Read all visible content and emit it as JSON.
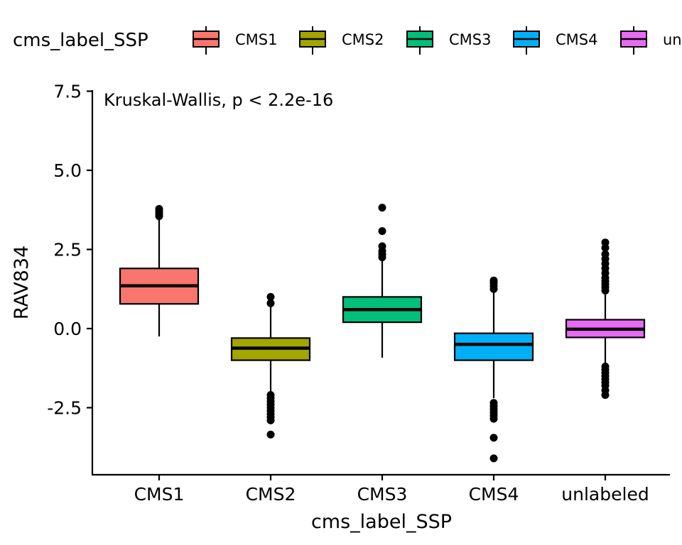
{
  "chart_data": {
    "type": "boxplot",
    "annotation": "Kruskal-Wallis, p < 2.2e-16",
    "xlabel": "cms_label_SSP",
    "ylabel": "RAV834",
    "ylim": [
      -4.5,
      7.5
    ],
    "yticks": [
      7.5,
      5.0,
      2.5,
      0.0,
      -2.5
    ],
    "ytick_labels": [
      "7.5",
      "5.0",
      "2.5",
      "0.0",
      "-2.5"
    ],
    "grid": false,
    "legend": {
      "title": "cms_label_SSP",
      "position": "top",
      "entries": [
        "CMS1",
        "CMS2",
        "CMS3",
        "CMS4",
        "unlabeled"
      ]
    },
    "categories": [
      "CMS1",
      "CMS2",
      "CMS3",
      "CMS4",
      "unlabeled"
    ],
    "colors": [
      "#F8766D",
      "#A3A500",
      "#00BF7D",
      "#00B0F6",
      "#E76BF3"
    ],
    "boxes": [
      {
        "q1": 0.78,
        "median": 1.35,
        "q3": 1.9,
        "whisker_low": -0.25,
        "whisker_high": 3.5,
        "outliers": [
          3.55,
          3.62,
          3.7,
          3.78
        ]
      },
      {
        "q1": -1.0,
        "median": -0.62,
        "q3": -0.3,
        "whisker_low": -2.0,
        "whisker_high": 0.75,
        "outliers": [
          0.8,
          1.0,
          -2.1,
          -2.2,
          -2.3,
          -2.4,
          -2.5,
          -2.6,
          -2.7,
          -2.8,
          -2.9,
          -3.35
        ]
      },
      {
        "q1": 0.2,
        "median": 0.6,
        "q3": 1.0,
        "whisker_low": -0.92,
        "whisker_high": 2.2,
        "outliers": [
          2.25,
          2.35,
          2.45,
          2.6,
          3.08,
          3.82
        ]
      },
      {
        "q1": -1.0,
        "median": -0.5,
        "q3": -0.15,
        "whisker_low": -2.2,
        "whisker_high": 1.2,
        "outliers": [
          1.25,
          1.35,
          1.45,
          1.52,
          -2.35,
          -2.45,
          -2.55,
          -2.65,
          -2.75,
          -2.85,
          -3.45,
          -4.1
        ]
      },
      {
        "q1": -0.28,
        "median": -0.02,
        "q3": 0.28,
        "whisker_low": -1.1,
        "whisker_high": 1.1,
        "outliers": [
          1.2,
          1.3,
          1.4,
          1.5,
          1.6,
          1.75,
          1.9,
          2.05,
          2.2,
          2.35,
          2.55,
          2.72,
          -1.2,
          -1.3,
          -1.4,
          -1.5,
          -1.6,
          -1.7,
          -1.8,
          -1.95,
          -2.1
        ]
      }
    ]
  }
}
